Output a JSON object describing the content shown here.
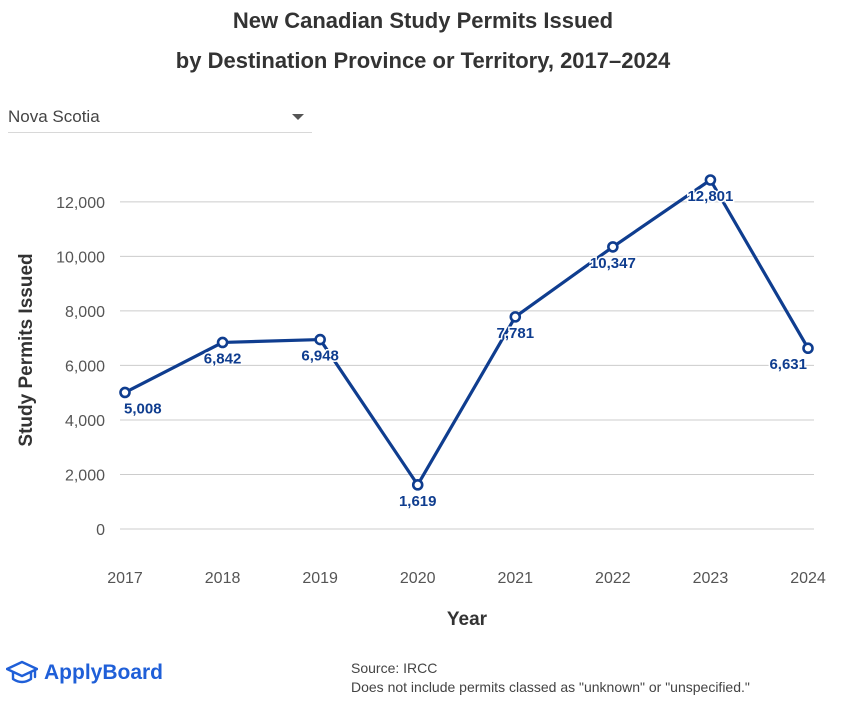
{
  "header": {
    "title_line1": "New Canadian Study Permits Issued",
    "title_line2": "by Destination Province or Territory, 2017–2024"
  },
  "filter": {
    "selected": "Nova Scotia",
    "icon": "chevron-down-icon"
  },
  "chart_data": {
    "type": "line",
    "categories": [
      "2017",
      "2018",
      "2019",
      "2020",
      "2021",
      "2022",
      "2023",
      "2024"
    ],
    "series": [
      {
        "values": [
          5008,
          6842,
          6948,
          1619,
          7781,
          10347,
          12801,
          6631
        ],
        "labels": [
          "5,008",
          "6,842",
          "6,948",
          "1,619",
          "7,781",
          "10,347",
          "12,801",
          "6,631"
        ],
        "color": "#0f3d8f"
      }
    ],
    "xlabel": "Year",
    "ylabel": "Study Permits Issued",
    "ylim": [
      0,
      12801
    ],
    "yticks": [
      0,
      2000,
      4000,
      6000,
      8000,
      10000,
      12000
    ],
    "ytick_labels": [
      "0",
      "2,000",
      "4,000",
      "6,000",
      "8,000",
      "10,000",
      "12,000"
    ],
    "grid": true,
    "legend": "none"
  },
  "footer": {
    "logo_text": "ApplyBoard",
    "logo_icon": "graduation-cap-icon",
    "source_line1": "Source: IRCC",
    "source_line2": "Does not include permits classed as \"unknown\" or \"unspecified.\""
  }
}
